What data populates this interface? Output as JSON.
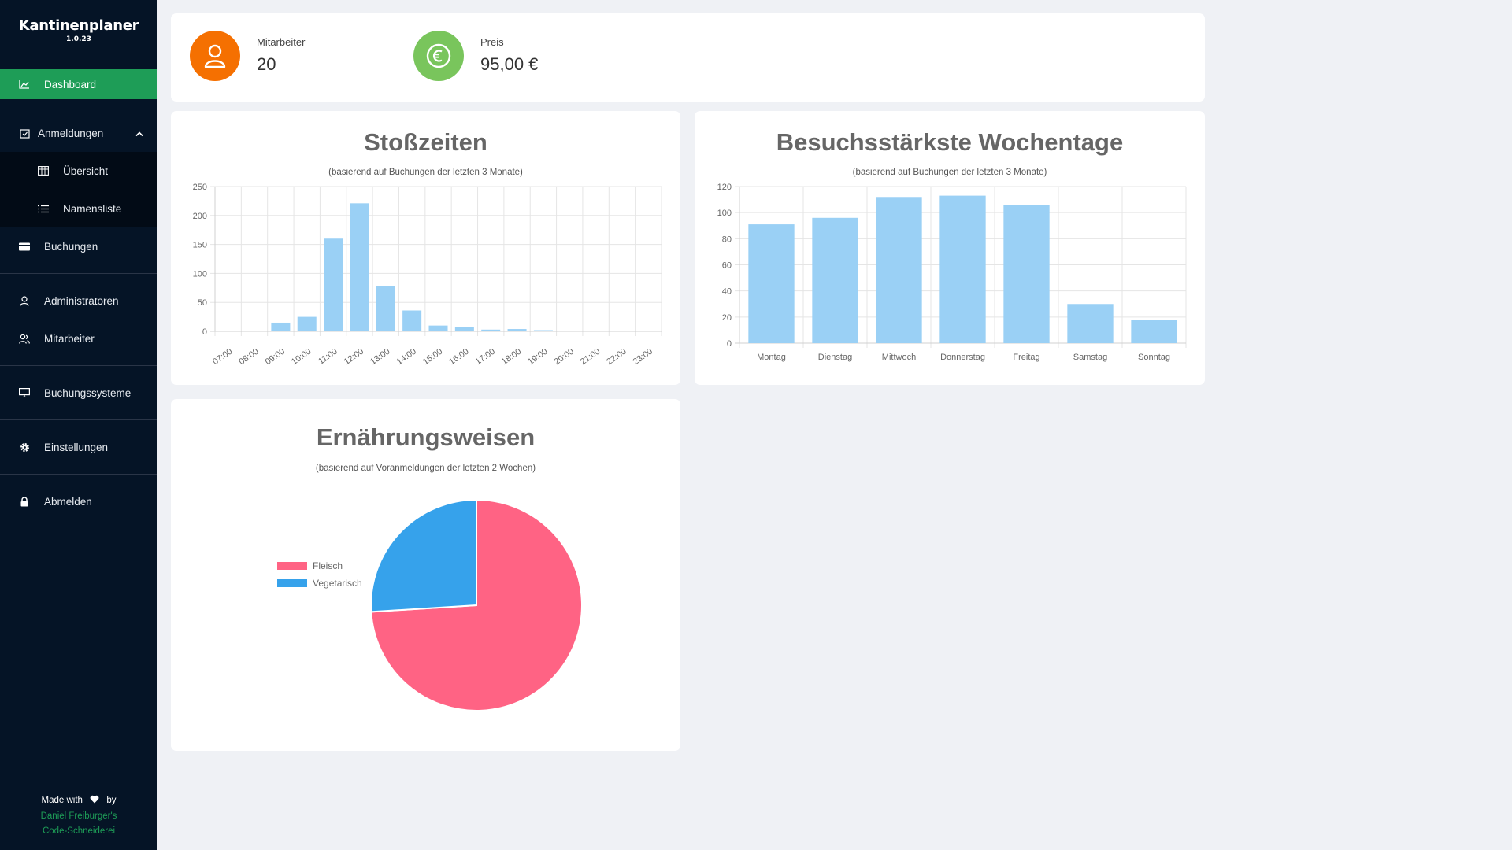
{
  "app": {
    "title": "Kantinenplaner",
    "version": "1.0.23"
  },
  "sidebar": {
    "dashboard": "Dashboard",
    "anmeldungen": "Anmeldungen",
    "uebersicht": "Übersicht",
    "namensliste": "Namensliste",
    "buchungen": "Buchungen",
    "administratoren": "Administratoren",
    "mitarbeiter": "Mitarbeiter",
    "buchungssysteme": "Buchungssysteme",
    "einstellungen": "Einstellungen",
    "abmelden": "Abmelden",
    "footer": {
      "made_with": "Made with",
      "by": "by",
      "author": "Daniel Freiburger's",
      "company": "Code-Schneiderei"
    }
  },
  "stats": {
    "mitarbeiter": {
      "label": "Mitarbeiter",
      "value": "20",
      "color": "#f57001"
    },
    "preis": {
      "label": "Preis",
      "value": "95,00 €",
      "color": "#79c55c"
    }
  },
  "chart_data": [
    {
      "type": "bar",
      "title": "Stoßzeiten",
      "subtitle": "(basierend auf Buchungen der letzten 3 Monate)",
      "categories": [
        "07:00",
        "08:00",
        "09:00",
        "10:00",
        "11:00",
        "12:00",
        "13:00",
        "14:00",
        "15:00",
        "16:00",
        "17:00",
        "18:00",
        "19:00",
        "20:00",
        "21:00",
        "22:00",
        "23:00"
      ],
      "values": [
        0,
        0,
        15,
        25,
        160,
        221,
        78,
        36,
        10,
        8,
        3,
        4,
        2,
        1,
        1,
        0,
        0
      ],
      "ylim": [
        0,
        250
      ],
      "yticks": [
        0,
        50,
        100,
        150,
        200,
        250
      ],
      "color": "#9ad0f5",
      "grid": true
    },
    {
      "type": "bar",
      "title": "Besuchsstärkste Wochentage",
      "subtitle": "(basierend auf Buchungen der letzten 3 Monate)",
      "categories": [
        "Montag",
        "Dienstag",
        "Mittwoch",
        "Donnerstag",
        "Freitag",
        "Samstag",
        "Sonntag"
      ],
      "values": [
        91,
        96,
        112,
        113,
        106,
        30,
        18
      ],
      "ylim": [
        0,
        120
      ],
      "yticks": [
        0,
        20,
        40,
        60,
        80,
        100,
        120
      ],
      "color": "#9ad0f5",
      "grid": true
    },
    {
      "type": "pie",
      "title": "Ernährungsweisen",
      "subtitle": "(basierend auf Voranmeldungen der letzten 2 Wochen)",
      "slices": [
        {
          "label": "Fleisch",
          "value": 74,
          "color": "#ff6384"
        },
        {
          "label": "Vegetarisch",
          "value": 26,
          "color": "#36a2eb"
        }
      ],
      "legend": "left"
    }
  ]
}
